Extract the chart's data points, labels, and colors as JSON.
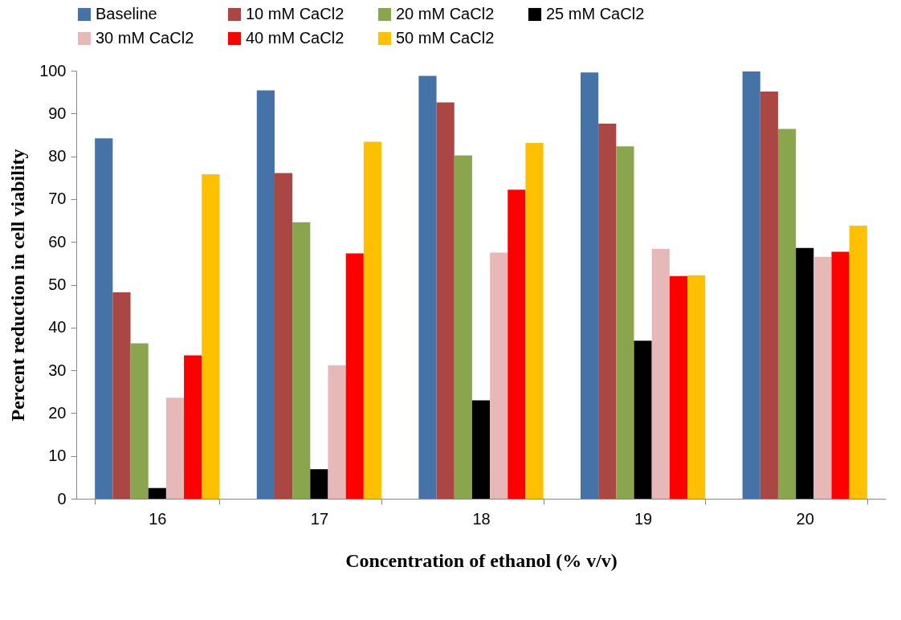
{
  "chart_data": {
    "type": "bar",
    "xlabel": "Concentration of ethanol (% v/v)",
    "ylabel": "Percent reduction in cell viability",
    "categories": [
      "16",
      "17",
      "18",
      "19",
      "20"
    ],
    "series": [
      {
        "name": "Baseline",
        "color": "#4572a7",
        "values": [
          84.2,
          95.4,
          98.8,
          99.6,
          99.8
        ]
      },
      {
        "name": "10 mM CaCl2",
        "color": "#aa4643",
        "values": [
          48.2,
          76.1,
          92.6,
          87.6,
          95.1
        ]
      },
      {
        "name": "20 mM CaCl2",
        "color": "#89a54e",
        "values": [
          36.3,
          64.6,
          80.2,
          82.3,
          86.4
        ]
      },
      {
        "name": "25 mM CaCl2",
        "color": "#000000",
        "values": [
          2.5,
          6.9,
          23.0,
          36.9,
          58.6
        ]
      },
      {
        "name": "30 mM CaCl2",
        "color": "#e6b9b8",
        "values": [
          23.6,
          31.2,
          57.5,
          58.4,
          56.5
        ]
      },
      {
        "name": "40 mM CaCl2",
        "color": "#ff0000",
        "values": [
          33.5,
          57.3,
          72.2,
          52.0,
          57.7
        ]
      },
      {
        "name": "50 mM CaCl2",
        "color": "#ffc000",
        "values": [
          75.8,
          83.4,
          83.1,
          52.2,
          63.8
        ]
      }
    ],
    "ylim": [
      0,
      100
    ],
    "yticks": [
      0,
      10,
      20,
      30,
      40,
      50,
      60,
      70,
      80,
      90,
      100
    ],
    "grid": false,
    "legend": "top"
  }
}
